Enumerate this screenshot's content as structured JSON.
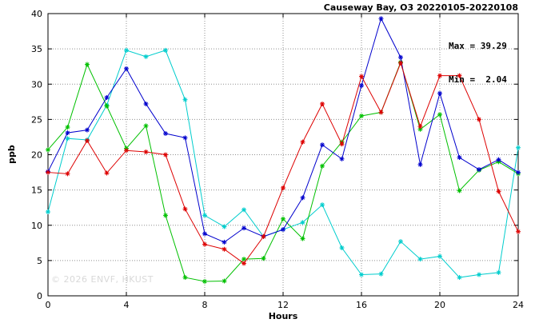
{
  "title": "Causeway Bay, O3 20220105-20220108",
  "annotations": {
    "max_label": "Max = 39.29",
    "min_label": "Min =  2.04"
  },
  "watermark": "© 2026 ENVF, HKUST",
  "colors": {
    "red": "#dd0000",
    "blue": "#0000cd",
    "green": "#00c000",
    "cyan": "#00cdcd",
    "grid": "#909090",
    "frame": "#000000"
  },
  "chart_data": {
    "type": "line",
    "title": "Causeway Bay, O3 20220105-20220108",
    "xlabel": "Hours",
    "ylabel": "ppb",
    "xlim": [
      0,
      24
    ],
    "ylim": [
      0,
      40
    ],
    "xticks": [
      0,
      4,
      8,
      12,
      16,
      20,
      24
    ],
    "yticks": [
      0,
      5,
      10,
      15,
      20,
      25,
      30,
      35,
      40
    ],
    "grid": true,
    "legend": "none",
    "marker": "asterisk",
    "max": 39.29,
    "min": 2.04,
    "x": [
      0,
      1,
      2,
      3,
      4,
      5,
      6,
      7,
      8,
      9,
      10,
      11,
      12,
      13,
      14,
      15,
      16,
      17,
      18,
      19,
      20,
      21,
      22,
      23,
      24
    ],
    "series": [
      {
        "name": "cyan",
        "color": "#00cdcd",
        "values": [
          11.9,
          22.3,
          22.1,
          27.0,
          34.8,
          33.9,
          34.8,
          27.8,
          11.4,
          9.8,
          12.2,
          8.4,
          9.4,
          10.4,
          12.9,
          6.8,
          3.0,
          3.1,
          7.7,
          5.2,
          5.6,
          2.6,
          3.0,
          3.3,
          21.0
        ]
      },
      {
        "name": "green",
        "color": "#00c000",
        "values": [
          20.7,
          23.9,
          32.8,
          26.9,
          20.9,
          24.1,
          11.4,
          2.6,
          2.04,
          2.1,
          5.2,
          5.3,
          10.9,
          8.1,
          18.4,
          21.8,
          25.5,
          26.0,
          33.1,
          23.6,
          25.7,
          14.9,
          17.8,
          19.0,
          17.3
        ]
      },
      {
        "name": "blue",
        "color": "#0000cd",
        "values": [
          17.6,
          23.1,
          23.5,
          28.1,
          32.2,
          27.2,
          23.0,
          22.4,
          8.8,
          7.6,
          9.6,
          8.4,
          9.4,
          13.9,
          21.4,
          19.4,
          29.8,
          39.29,
          33.8,
          18.6,
          28.7,
          19.6,
          17.9,
          19.3,
          17.5
        ]
      },
      {
        "name": "red",
        "color": "#dd0000",
        "values": [
          17.5,
          17.3,
          22.0,
          17.4,
          20.6,
          20.4,
          20.0,
          12.3,
          7.3,
          6.6,
          4.6,
          8.4,
          15.3,
          21.8,
          27.2,
          21.5,
          31.1,
          26.0,
          33.0,
          24.0,
          31.2,
          31.2,
          25.0,
          14.8,
          9.1
        ]
      }
    ]
  }
}
